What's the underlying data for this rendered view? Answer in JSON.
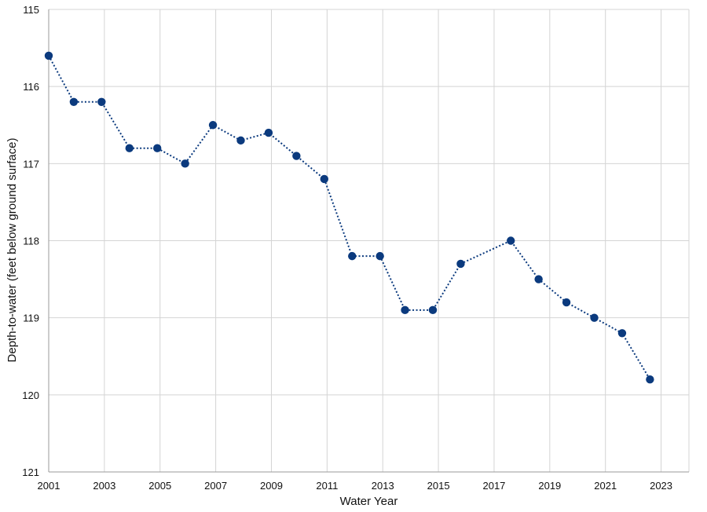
{
  "chart_data": {
    "type": "line",
    "title": "",
    "xlabel": "Water Year",
    "ylabel": "Depth-to-water (feet below ground surface)",
    "xlim": [
      2001,
      2024
    ],
    "ylim": [
      115,
      121
    ],
    "y_inverted": true,
    "grid": true,
    "x_ticks": [
      "2001",
      "2003",
      "2005",
      "2007",
      "2009",
      "2011",
      "2013",
      "2015",
      "2017",
      "2019",
      "2021",
      "2023"
    ],
    "y_ticks": [
      "115",
      "116",
      "117",
      "118",
      "119",
      "120",
      "121"
    ],
    "series": [
      {
        "line_style": "dotted",
        "marker": "circle",
        "color": "#0b3a7e",
        "points": [
          {
            "x": 2001.0,
            "y": 115.6
          },
          {
            "x": 2001.9,
            "y": 116.2
          },
          {
            "x": 2002.9,
            "y": 116.2
          },
          {
            "x": 2003.9,
            "y": 116.8
          },
          {
            "x": 2004.9,
            "y": 116.8
          },
          {
            "x": 2005.9,
            "y": 117.0
          },
          {
            "x": 2006.9,
            "y": 116.5
          },
          {
            "x": 2007.9,
            "y": 116.7
          },
          {
            "x": 2008.9,
            "y": 116.6
          },
          {
            "x": 2009.9,
            "y": 116.9
          },
          {
            "x": 2010.9,
            "y": 117.2
          },
          {
            "x": 2011.9,
            "y": 118.2
          },
          {
            "x": 2012.9,
            "y": 118.2
          },
          {
            "x": 2013.8,
            "y": 118.9
          },
          {
            "x": 2014.8,
            "y": 118.9
          },
          {
            "x": 2015.8,
            "y": 118.3
          },
          {
            "x": 2017.6,
            "y": 118.0
          },
          {
            "x": 2018.6,
            "y": 118.5
          },
          {
            "x": 2019.6,
            "y": 118.8
          },
          {
            "x": 2020.6,
            "y": 119.0
          },
          {
            "x": 2021.6,
            "y": 119.2
          },
          {
            "x": 2022.6,
            "y": 119.8
          }
        ]
      }
    ]
  }
}
